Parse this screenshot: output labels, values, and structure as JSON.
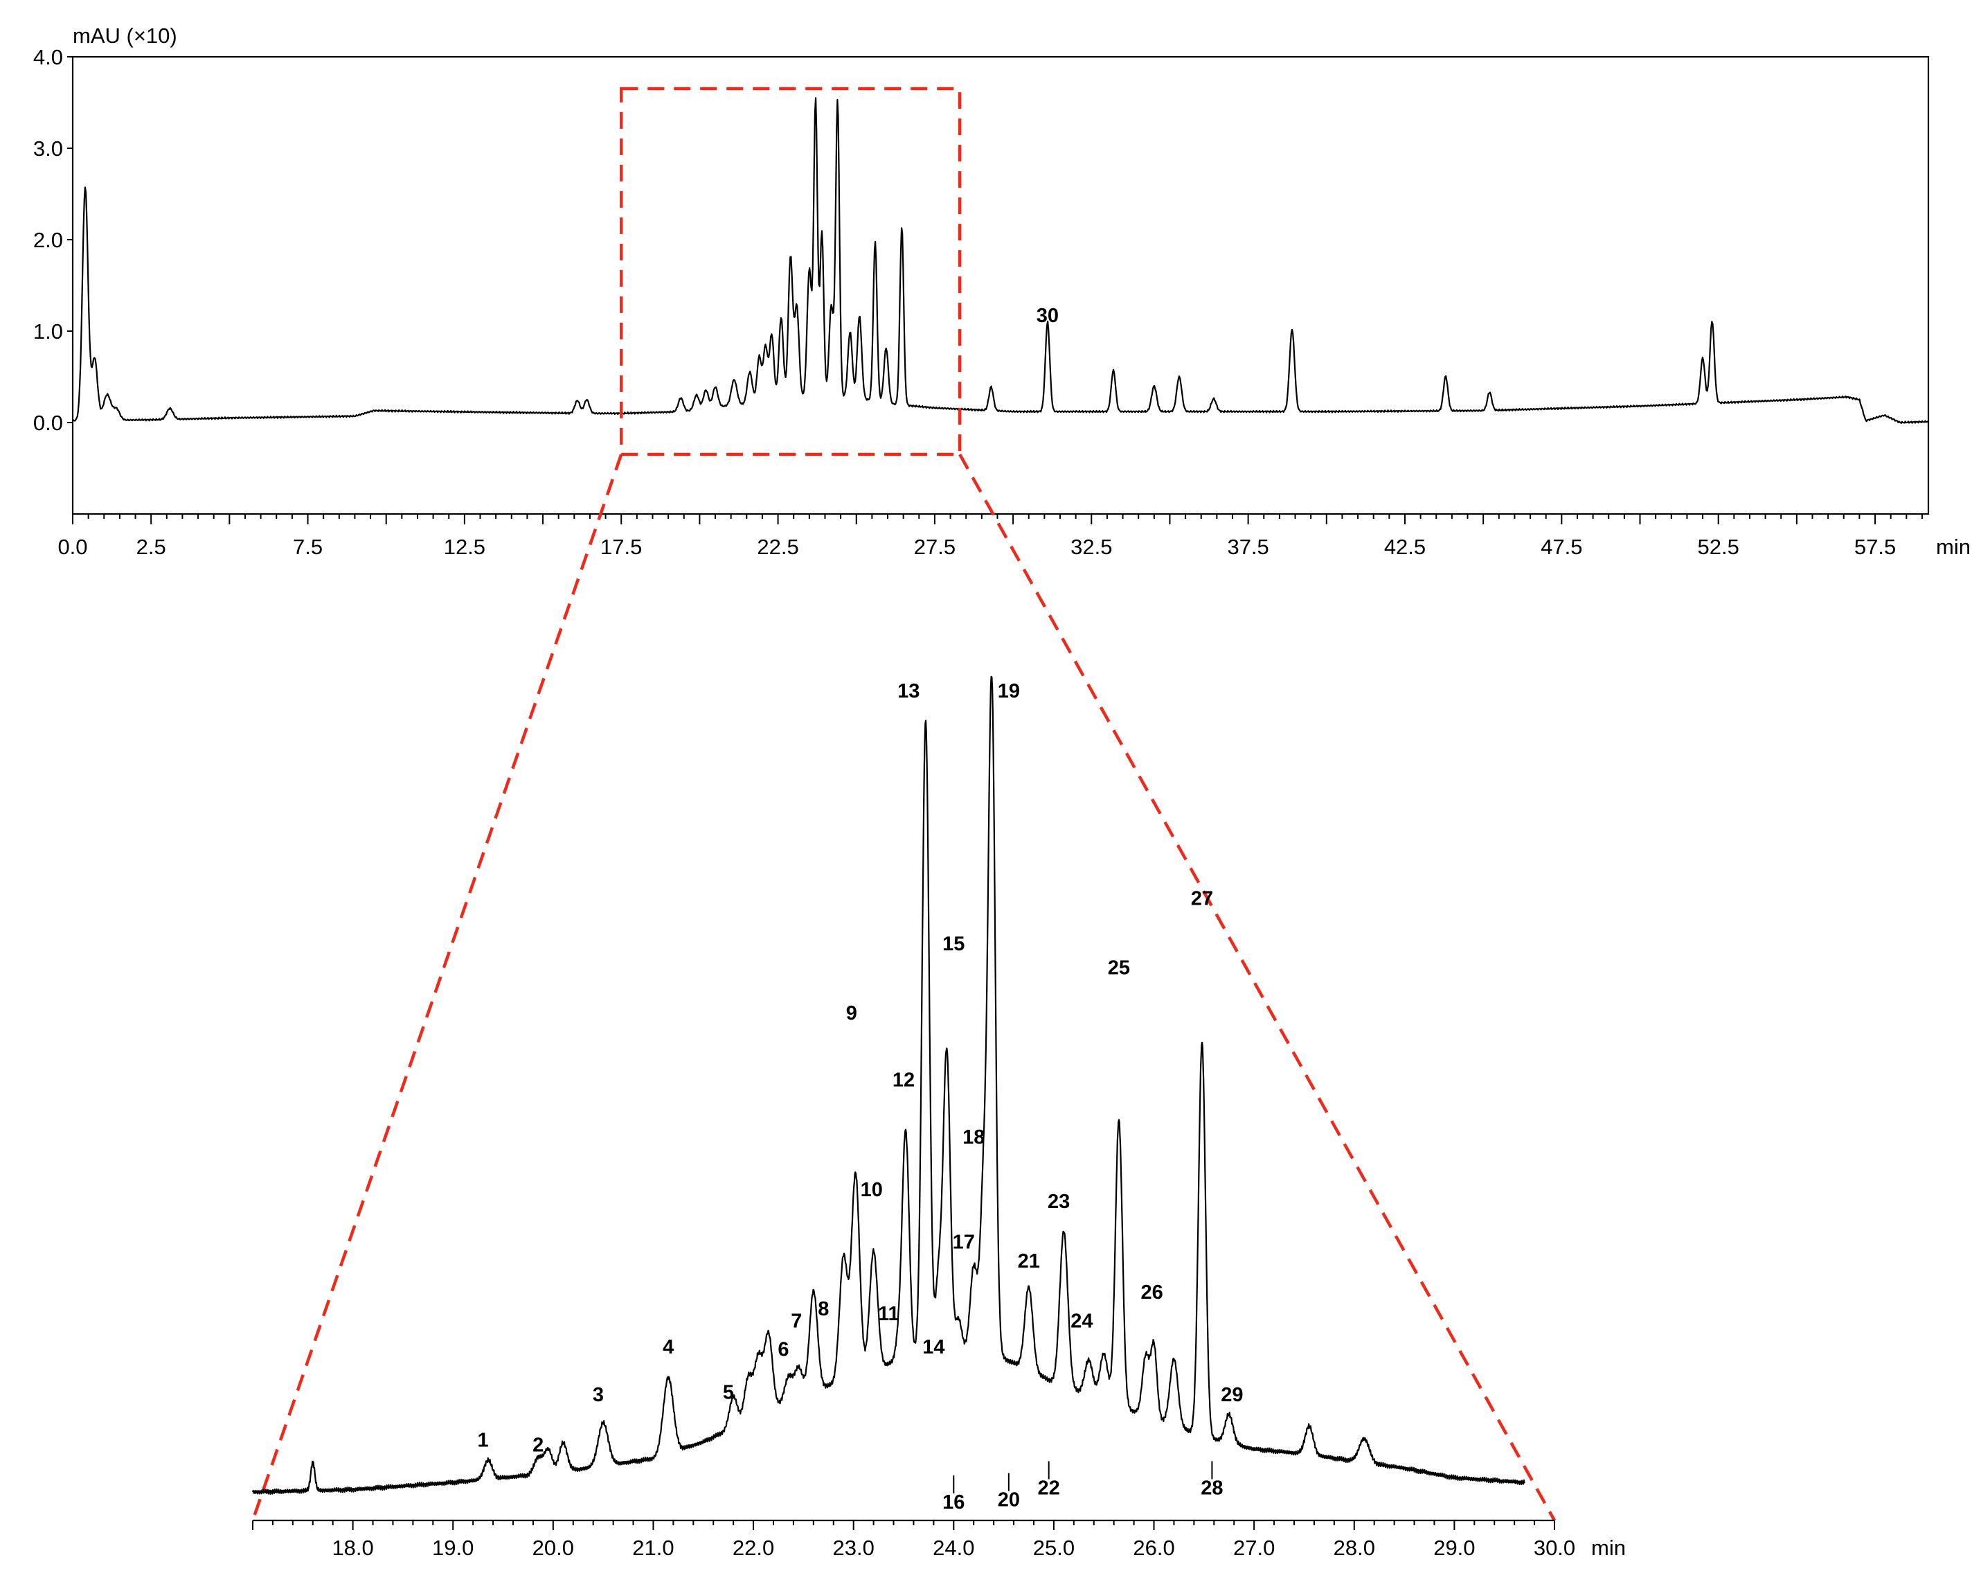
{
  "colors": {
    "trace": "#000000",
    "zoom": "#ee2a1a",
    "background": "#ffffff"
  },
  "chart_data": [
    {
      "type": "line",
      "title": "",
      "ylabel": "mAU (×10)",
      "xlabel": "min",
      "xlim": [
        0,
        59.2
      ],
      "ylim": [
        -1.0,
        4.0
      ],
      "xticks": [
        "0.0",
        "2.5",
        "7.5",
        "12.5",
        "17.5",
        "22.5",
        "27.5",
        "32.5",
        "37.5",
        "42.5",
        "47.5",
        "52.5",
        "57.5"
      ],
      "yticks": [
        "4.0",
        "3.0",
        "2.0",
        "1.0",
        "0.0"
      ],
      "zoom_range_min": [
        17.5,
        28.3
      ],
      "baseline": [
        [
          0,
          0.02
        ],
        [
          2.5,
          0.03
        ],
        [
          5,
          0.05
        ],
        [
          9,
          0.07
        ],
        [
          9.6,
          0.13
        ],
        [
          14,
          0.11
        ],
        [
          16.5,
          0.1
        ],
        [
          17.5,
          0.1
        ],
        [
          19.5,
          0.12
        ],
        [
          20.5,
          0.17
        ],
        [
          21.5,
          0.2
        ],
        [
          22.5,
          0.25
        ],
        [
          23.5,
          0.28
        ],
        [
          25,
          0.27
        ],
        [
          26.2,
          0.2
        ],
        [
          27.5,
          0.16
        ],
        [
          30,
          0.12
        ],
        [
          35,
          0.12
        ],
        [
          40,
          0.12
        ],
        [
          45,
          0.13
        ],
        [
          50,
          0.18
        ],
        [
          55,
          0.25
        ],
        [
          56.6,
          0.28
        ],
        [
          57,
          0.25
        ],
        [
          57.2,
          0.02
        ],
        [
          57.8,
          0.08
        ],
        [
          58.3,
          0.0
        ],
        [
          59.2,
          0.01
        ]
      ],
      "peaks": [
        {
          "rt": 0.4,
          "height": 2.55,
          "width": 0.09
        },
        {
          "rt": 0.7,
          "height": 0.68,
          "width": 0.09
        },
        {
          "rt": 1.1,
          "height": 0.28,
          "width": 0.12
        },
        {
          "rt": 1.4,
          "height": 0.12,
          "width": 0.1
        },
        {
          "rt": 3.1,
          "height": 0.12,
          "width": 0.1
        },
        {
          "rt": 16.1,
          "height": 0.14,
          "width": 0.08
        },
        {
          "rt": 16.4,
          "height": 0.15,
          "width": 0.08
        },
        {
          "rt": 19.4,
          "height": 0.15,
          "width": 0.08
        },
        {
          "rt": 19.9,
          "height": 0.16,
          "width": 0.08
        },
        {
          "rt": 20.2,
          "height": 0.2,
          "width": 0.08
        },
        {
          "rt": 20.5,
          "height": 0.22,
          "width": 0.08
        },
        {
          "rt": 21.1,
          "height": 0.28,
          "width": 0.09
        },
        {
          "rt": 21.6,
          "height": 0.35,
          "width": 0.08
        },
        {
          "rt": 21.9,
          "height": 0.5,
          "width": 0.07
        },
        {
          "rt": 22.1,
          "height": 0.6,
          "width": 0.07
        },
        {
          "rt": 22.3,
          "height": 0.72,
          "width": 0.07
        },
        {
          "rt": 22.6,
          "height": 0.9,
          "width": 0.07
        },
        {
          "rt": 22.9,
          "height": 1.55,
          "width": 0.07
        },
        {
          "rt": 23.1,
          "height": 1.0,
          "width": 0.07
        },
        {
          "rt": 23.5,
          "height": 1.4,
          "width": 0.07
        },
        {
          "rt": 23.7,
          "height": 3.25,
          "width": 0.06
        },
        {
          "rt": 23.9,
          "height": 1.8,
          "width": 0.06
        },
        {
          "rt": 24.2,
          "height": 1.0,
          "width": 0.07
        },
        {
          "rt": 24.4,
          "height": 3.25,
          "width": 0.06
        },
        {
          "rt": 24.8,
          "height": 0.72,
          "width": 0.07
        },
        {
          "rt": 25.1,
          "height": 0.9,
          "width": 0.07
        },
        {
          "rt": 25.6,
          "height": 1.75,
          "width": 0.06
        },
        {
          "rt": 25.95,
          "height": 0.6,
          "width": 0.07
        },
        {
          "rt": 26.45,
          "height": 1.95,
          "width": 0.06
        },
        {
          "rt": 29.3,
          "height": 0.26,
          "width": 0.07
        },
        {
          "rt": 31.1,
          "height": 0.98,
          "width": 0.07
        },
        {
          "rt": 33.2,
          "height": 0.45,
          "width": 0.07
        },
        {
          "rt": 34.5,
          "height": 0.28,
          "width": 0.08
        },
        {
          "rt": 35.3,
          "height": 0.38,
          "width": 0.08
        },
        {
          "rt": 36.4,
          "height": 0.14,
          "width": 0.08
        },
        {
          "rt": 38.9,
          "height": 0.9,
          "width": 0.08
        },
        {
          "rt": 43.8,
          "height": 0.38,
          "width": 0.07
        },
        {
          "rt": 45.2,
          "height": 0.2,
          "width": 0.07
        },
        {
          "rt": 52.0,
          "height": 0.5,
          "width": 0.07
        },
        {
          "rt": 52.3,
          "height": 0.9,
          "width": 0.07
        }
      ],
      "annotations": [
        {
          "label": "30",
          "rt": 31.1,
          "y": 1.1
        }
      ]
    },
    {
      "type": "line",
      "title": "",
      "ylabel": "",
      "xlabel": "min",
      "xlim": [
        17.0,
        30.0
      ],
      "xticks": [
        "18.0",
        "19.0",
        "20.0",
        "21.0",
        "22.0",
        "23.0",
        "24.0",
        "25.0",
        "26.0",
        "27.0",
        "28.0",
        "29.0",
        "30.0"
      ],
      "ylim": [
        -0.05,
        3.55
      ],
      "baseline": [
        [
          17.0,
          0.04
        ],
        [
          18.0,
          0.05
        ],
        [
          19.0,
          0.08
        ],
        [
          20.0,
          0.12
        ],
        [
          21.0,
          0.18
        ],
        [
          21.5,
          0.25
        ],
        [
          22.0,
          0.35
        ],
        [
          22.5,
          0.45
        ],
        [
          23.0,
          0.52
        ],
        [
          23.5,
          0.6
        ],
        [
          24.0,
          0.65
        ],
        [
          24.5,
          0.6
        ],
        [
          25.0,
          0.5
        ],
        [
          25.5,
          0.42
        ],
        [
          26.0,
          0.35
        ],
        [
          26.5,
          0.27
        ],
        [
          27.0,
          0.22
        ],
        [
          27.5,
          0.2
        ],
        [
          28.0,
          0.17
        ],
        [
          28.5,
          0.14
        ],
        [
          29.0,
          0.1
        ],
        [
          29.7,
          0.08
        ]
      ],
      "peaks": [
        {
          "rt": 17.6,
          "height": 0.12,
          "width": 0.02
        },
        {
          "rt": 19.35,
          "height": 0.08,
          "width": 0.04
        },
        {
          "rt": 19.85,
          "height": 0.07,
          "width": 0.04
        },
        {
          "rt": 19.95,
          "height": 0.1,
          "width": 0.04
        },
        {
          "rt": 20.1,
          "height": 0.12,
          "width": 0.04
        },
        {
          "rt": 20.5,
          "height": 0.18,
          "width": 0.05
        },
        {
          "rt": 21.15,
          "height": 0.32,
          "width": 0.05
        },
        {
          "rt": 21.8,
          "height": 0.13,
          "width": 0.04
        },
        {
          "rt": 21.95,
          "height": 0.18,
          "width": 0.04
        },
        {
          "rt": 22.05,
          "height": 0.24,
          "width": 0.04
        },
        {
          "rt": 22.15,
          "height": 0.32,
          "width": 0.04
        },
        {
          "rt": 22.35,
          "height": 0.1,
          "width": 0.04
        },
        {
          "rt": 22.45,
          "height": 0.12,
          "width": 0.04
        },
        {
          "rt": 22.6,
          "height": 0.42,
          "width": 0.04
        },
        {
          "rt": 22.9,
          "height": 0.52,
          "width": 0.04
        },
        {
          "rt": 23.02,
          "height": 0.85,
          "width": 0.04
        },
        {
          "rt": 23.2,
          "height": 0.5,
          "width": 0.04
        },
        {
          "rt": 23.45,
          "height": 0.08,
          "width": 0.03
        },
        {
          "rt": 23.52,
          "height": 0.95,
          "width": 0.035
        },
        {
          "rt": 23.72,
          "height": 2.65,
          "width": 0.035
        },
        {
          "rt": 23.85,
          "height": 0.3,
          "width": 0.03
        },
        {
          "rt": 23.93,
          "height": 1.25,
          "width": 0.035
        },
        {
          "rt": 24.05,
          "height": 0.12,
          "width": 0.03
        },
        {
          "rt": 24.2,
          "height": 0.35,
          "width": 0.035
        },
        {
          "rt": 24.3,
          "height": 0.7,
          "width": 0.035
        },
        {
          "rt": 24.38,
          "height": 2.8,
          "width": 0.035
        },
        {
          "rt": 24.75,
          "height": 0.35,
          "width": 0.04
        },
        {
          "rt": 25.1,
          "height": 0.65,
          "width": 0.04
        },
        {
          "rt": 25.35,
          "height": 0.15,
          "width": 0.04
        },
        {
          "rt": 25.5,
          "height": 0.2,
          "width": 0.04
        },
        {
          "rt": 25.65,
          "height": 1.2,
          "width": 0.035
        },
        {
          "rt": 25.92,
          "height": 0.25,
          "width": 0.035
        },
        {
          "rt": 26.0,
          "height": 0.3,
          "width": 0.03
        },
        {
          "rt": 26.2,
          "height": 0.28,
          "width": 0.04
        },
        {
          "rt": 26.48,
          "height": 1.65,
          "width": 0.035
        },
        {
          "rt": 26.75,
          "height": 0.12,
          "width": 0.04
        },
        {
          "rt": 27.55,
          "height": 0.12,
          "width": 0.04
        },
        {
          "rt": 28.1,
          "height": 0.1,
          "width": 0.05
        }
      ],
      "peak_labels": [
        {
          "label": "1",
          "rt": 19.3,
          "y": 0.23,
          "leader": false
        },
        {
          "label": "2",
          "rt": 19.85,
          "y": 0.21,
          "leader": false
        },
        {
          "label": "3",
          "rt": 20.45,
          "y": 0.42,
          "leader": false
        },
        {
          "label": "4",
          "rt": 21.15,
          "y": 0.62,
          "leader": false
        },
        {
          "label": "5",
          "rt": 21.75,
          "y": 0.43,
          "leader": false
        },
        {
          "label": "6",
          "rt": 22.3,
          "y": 0.61,
          "leader": false
        },
        {
          "label": "7",
          "rt": 22.43,
          "y": 0.73,
          "leader": false
        },
        {
          "label": "8",
          "rt": 22.7,
          "y": 0.78,
          "leader": false
        },
        {
          "label": "9",
          "rt": 22.98,
          "y": 2.02,
          "leader": false
        },
        {
          "label": "10",
          "rt": 23.18,
          "y": 1.28,
          "leader": false
        },
        {
          "label": "11",
          "rt": 23.35,
          "y": 0.76,
          "leader": false
        },
        {
          "label": "12",
          "rt": 23.5,
          "y": 1.74,
          "leader": false
        },
        {
          "label": "13",
          "rt": 23.55,
          "y": 3.37,
          "leader": false
        },
        {
          "label": "14",
          "rt": 23.8,
          "y": 0.62,
          "leader": false
        },
        {
          "label": "15",
          "rt": 24.0,
          "y": 2.31,
          "leader": false
        },
        {
          "label": "16",
          "rt": 24.0,
          "y": -0.03,
          "leader": true
        },
        {
          "label": "17",
          "rt": 24.1,
          "y": 1.06,
          "leader": false
        },
        {
          "label": "18",
          "rt": 24.2,
          "y": 1.5,
          "leader": false
        },
        {
          "label": "19",
          "rt": 24.55,
          "y": 3.37,
          "leader": false
        },
        {
          "label": "20",
          "rt": 24.55,
          "y": -0.02,
          "leader": true
        },
        {
          "label": "21",
          "rt": 24.75,
          "y": 0.98,
          "leader": false
        },
        {
          "label": "22",
          "rt": 24.95,
          "y": 0.03,
          "leader": true
        },
        {
          "label": "23",
          "rt": 25.05,
          "y": 1.23,
          "leader": false
        },
        {
          "label": "24",
          "rt": 25.28,
          "y": 0.73,
          "leader": false
        },
        {
          "label": "25",
          "rt": 25.65,
          "y": 2.21,
          "leader": false
        },
        {
          "label": "26",
          "rt": 25.98,
          "y": 0.85,
          "leader": false
        },
        {
          "label": "27",
          "rt": 26.48,
          "y": 2.5,
          "leader": false
        },
        {
          "label": "28",
          "rt": 26.58,
          "y": 0.03,
          "leader": true
        },
        {
          "label": "29",
          "rt": 26.78,
          "y": 0.42,
          "leader": false
        }
      ]
    }
  ]
}
